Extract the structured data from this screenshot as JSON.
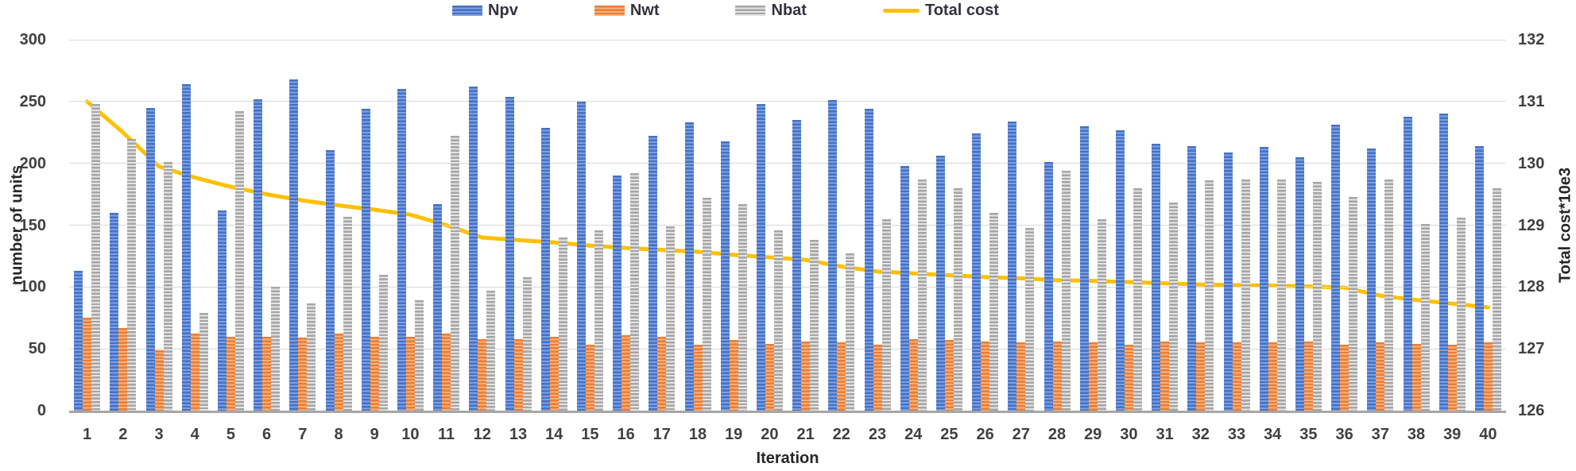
{
  "colors": {
    "grid": "#d9d9d9",
    "axis_line": "#a6a6a6",
    "tick_text": "#404040",
    "title_text": "#262626",
    "legend_text": "#33333f"
  },
  "chart_data": {
    "type": "combo-bar-line",
    "title": "",
    "xlabel": "Iteration",
    "ylabel_left": "number of units",
    "ylabel_right": "Total cost*10e3",
    "grid": true,
    "legend_position": "top-center",
    "categories": [
      1,
      2,
      3,
      4,
      5,
      6,
      7,
      8,
      9,
      10,
      11,
      12,
      13,
      14,
      15,
      16,
      17,
      18,
      19,
      20,
      21,
      22,
      23,
      24,
      25,
      26,
      27,
      28,
      29,
      30,
      31,
      32,
      33,
      34,
      35,
      36,
      37,
      38,
      39,
      40
    ],
    "left_axis": {
      "min": 0,
      "max": 300,
      "ticks": [
        300,
        250,
        200,
        150,
        100,
        50,
        0
      ]
    },
    "right_axis": {
      "min": 126,
      "max": 132,
      "ticks": [
        132,
        131,
        130,
        129,
        128,
        127,
        126
      ]
    },
    "series": [
      {
        "name": "Npv",
        "type": "bar",
        "color": "#4472C4",
        "color_light": "#7e9fe3",
        "values": [
          113,
          160,
          245,
          264,
          162,
          252,
          268,
          211,
          244,
          260,
          167,
          262,
          254,
          229,
          250,
          190,
          222,
          233,
          218,
          248,
          235,
          251,
          244,
          198,
          206,
          224,
          234,
          201,
          230,
          227,
          216,
          214,
          209,
          213,
          205,
          231,
          212,
          238,
          240,
          214
        ]
      },
      {
        "name": "Nwt",
        "type": "bar",
        "color": "#ED7D31",
        "color_light": "#f8b07e",
        "values": [
          75,
          67,
          49,
          62,
          60,
          60,
          59,
          62,
          60,
          60,
          62,
          58,
          58,
          60,
          53,
          61,
          60,
          53,
          57,
          54,
          56,
          55,
          53,
          58,
          57,
          56,
          55,
          56,
          55,
          53,
          56,
          55,
          55,
          55,
          56,
          53,
          55,
          54,
          53,
          55
        ]
      },
      {
        "name": "Nbat",
        "type": "bar",
        "color": "#A5A5A5",
        "color_light": "#e4e4e4",
        "values": [
          248,
          220,
          201,
          79,
          242,
          100,
          87,
          157,
          110,
          89,
          222,
          97,
          108,
          140,
          146,
          192,
          149,
          172,
          167,
          146,
          138,
          127,
          155,
          187,
          180,
          160,
          148,
          194,
          155,
          180,
          168,
          186,
          187,
          187,
          185,
          173,
          187,
          151,
          156,
          180
        ]
      },
      {
        "name": "Total cost",
        "type": "line",
        "axis": "right",
        "color": "#FFC000",
        "values": [
          131.0,
          130.5,
          129.95,
          129.77,
          129.62,
          129.5,
          129.4,
          129.32,
          129.25,
          129.17,
          129.0,
          128.8,
          128.76,
          128.72,
          128.67,
          128.63,
          128.6,
          128.57,
          128.52,
          128.48,
          128.44,
          128.33,
          128.25,
          128.22,
          128.19,
          128.16,
          128.14,
          128.11,
          128.1,
          128.08,
          128.06,
          128.04,
          128.03,
          128.02,
          128.01,
          127.99,
          127.86,
          127.79,
          127.73,
          127.67
        ]
      }
    ]
  }
}
